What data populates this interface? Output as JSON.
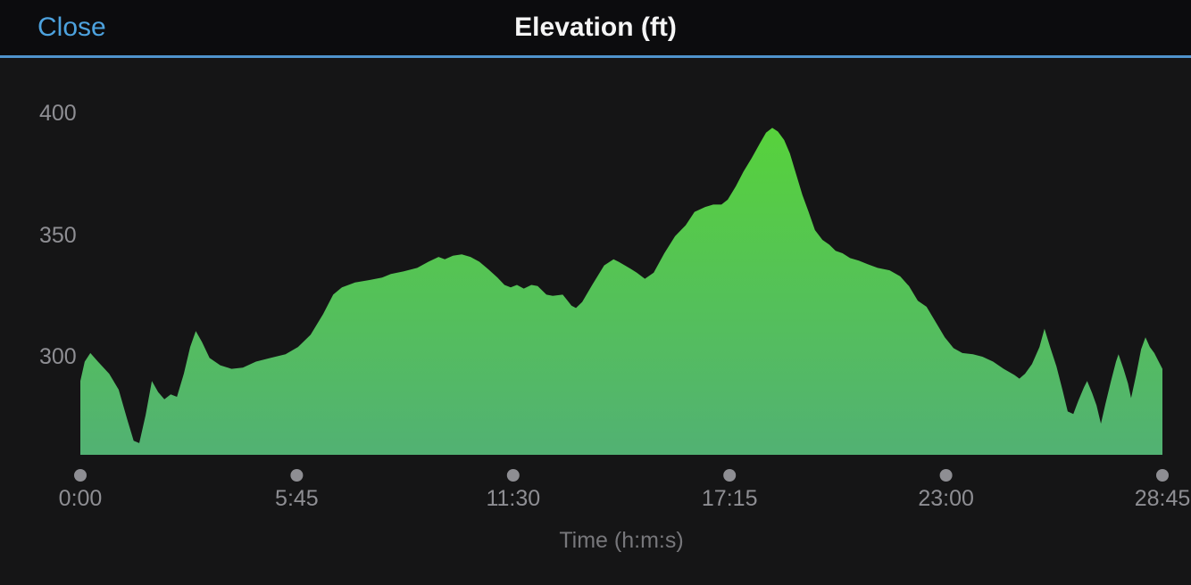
{
  "header": {
    "close_label": "Close",
    "title": "Elevation (ft)"
  },
  "colors": {
    "page_background": "#151516",
    "header_background": "#0c0c0e",
    "header_border_blue": "#4f93cc",
    "close_text_blue": "#4da2de",
    "title_text": "#f5f5f5",
    "tick_text": "#8e8e93",
    "axis_title_text": "#77777b",
    "tick_dot": "#8e8e93",
    "area_gradient_top": "#57d23c",
    "area_gradient_bottom": "#52b173"
  },
  "chart_data": {
    "type": "area",
    "title": "Elevation (ft)",
    "xlabel": "Time (h:m:s)",
    "ylabel": "",
    "x_unit": "seconds",
    "xlim": [
      0,
      1725
    ],
    "ylim": [
      259.5,
      419
    ],
    "grid": false,
    "legend": false,
    "y_ticks": [
      {
        "value": 400,
        "label": "400"
      },
      {
        "value": 350,
        "label": "350"
      },
      {
        "value": 300,
        "label": "300"
      }
    ],
    "x_ticks": [
      {
        "t": 0,
        "label": "0:00"
      },
      {
        "t": 345,
        "label": "5:45"
      },
      {
        "t": 690,
        "label": "11:30"
      },
      {
        "t": 1035,
        "label": "17:15"
      },
      {
        "t": 1380,
        "label": "23:00"
      },
      {
        "t": 1725,
        "label": "28:45"
      }
    ],
    "series": [
      {
        "name": "Elevation (ft)",
        "points": [
          [
            0,
            290
          ],
          [
            7,
            298
          ],
          [
            16,
            301.5
          ],
          [
            28,
            298
          ],
          [
            46,
            293
          ],
          [
            61,
            286.5
          ],
          [
            75,
            274
          ],
          [
            85,
            265.5
          ],
          [
            94,
            264.5
          ],
          [
            104,
            276
          ],
          [
            114,
            290
          ],
          [
            124,
            285.5
          ],
          [
            134,
            282.5
          ],
          [
            144,
            284.5
          ],
          [
            154,
            283.5
          ],
          [
            165,
            293
          ],
          [
            175,
            304
          ],
          [
            184,
            310.5
          ],
          [
            194,
            306
          ],
          [
            206,
            299.5
          ],
          [
            223,
            296.5
          ],
          [
            241,
            295
          ],
          [
            259,
            295.5
          ],
          [
            280,
            298
          ],
          [
            303,
            299.5
          ],
          [
            327,
            301
          ],
          [
            347,
            304
          ],
          [
            367,
            309
          ],
          [
            387,
            317.5
          ],
          [
            403,
            325.5
          ],
          [
            417,
            328.5
          ],
          [
            438,
            330.5
          ],
          [
            461,
            331.5
          ],
          [
            481,
            332.5
          ],
          [
            495,
            334
          ],
          [
            515,
            335
          ],
          [
            537,
            336.5
          ],
          [
            555,
            339
          ],
          [
            571,
            341
          ],
          [
            581,
            340
          ],
          [
            594,
            341.5
          ],
          [
            608,
            342
          ],
          [
            622,
            341
          ],
          [
            636,
            339
          ],
          [
            650,
            336
          ],
          [
            665,
            332.5
          ],
          [
            676,
            329.5
          ],
          [
            686,
            328.5
          ],
          [
            696,
            329.5
          ],
          [
            707,
            328
          ],
          [
            719,
            329.5
          ],
          [
            729,
            329
          ],
          [
            743,
            325.5
          ],
          [
            753,
            325
          ],
          [
            769,
            325.5
          ],
          [
            783,
            321
          ],
          [
            790,
            320
          ],
          [
            800,
            322.5
          ],
          [
            816,
            329.5
          ],
          [
            835,
            337.5
          ],
          [
            850,
            340
          ],
          [
            858,
            339
          ],
          [
            868,
            337.5
          ],
          [
            878,
            336
          ],
          [
            887,
            334.5
          ],
          [
            900,
            332
          ],
          [
            914,
            334.5
          ],
          [
            931,
            342.5
          ],
          [
            948,
            349.5
          ],
          [
            965,
            354
          ],
          [
            979,
            359.5
          ],
          [
            996,
            361.5
          ],
          [
            1009,
            362.5
          ],
          [
            1022,
            362.5
          ],
          [
            1032,
            364.5
          ],
          [
            1045,
            370
          ],
          [
            1057,
            376
          ],
          [
            1070,
            381.5
          ],
          [
            1083,
            387.5
          ],
          [
            1093,
            392
          ],
          [
            1103,
            394
          ],
          [
            1112,
            392.5
          ],
          [
            1122,
            389
          ],
          [
            1131,
            383.5
          ],
          [
            1141,
            375
          ],
          [
            1151,
            366.5
          ],
          [
            1161,
            359.5
          ],
          [
            1171,
            352
          ],
          [
            1183,
            348
          ],
          [
            1194,
            346
          ],
          [
            1204,
            343.5
          ],
          [
            1215,
            342.5
          ],
          [
            1227,
            340.5
          ],
          [
            1241,
            339.5
          ],
          [
            1255,
            338
          ],
          [
            1271,
            336.5
          ],
          [
            1290,
            335.5
          ],
          [
            1307,
            333
          ],
          [
            1321,
            329
          ],
          [
            1335,
            323
          ],
          [
            1349,
            320.5
          ],
          [
            1364,
            314
          ],
          [
            1378,
            308
          ],
          [
            1392,
            303.5
          ],
          [
            1406,
            301.5
          ],
          [
            1423,
            301
          ],
          [
            1438,
            300
          ],
          [
            1455,
            298
          ],
          [
            1472,
            295
          ],
          [
            1489,
            292.5
          ],
          [
            1497,
            291
          ],
          [
            1506,
            293
          ],
          [
            1517,
            297
          ],
          [
            1529,
            304
          ],
          [
            1537,
            311.5
          ],
          [
            1546,
            304
          ],
          [
            1556,
            296
          ],
          [
            1566,
            286
          ],
          [
            1574,
            277.5
          ],
          [
            1583,
            276.5
          ],
          [
            1591,
            282
          ],
          [
            1600,
            287.5
          ],
          [
            1605,
            290
          ],
          [
            1613,
            285
          ],
          [
            1620,
            280
          ],
          [
            1627,
            272.5
          ],
          [
            1634,
            280.5
          ],
          [
            1643,
            290
          ],
          [
            1651,
            298
          ],
          [
            1655,
            301
          ],
          [
            1663,
            295
          ],
          [
            1670,
            289
          ],
          [
            1675,
            283
          ],
          [
            1683,
            292.5
          ],
          [
            1691,
            303
          ],
          [
            1698,
            308
          ],
          [
            1705,
            304
          ],
          [
            1712,
            301.5
          ],
          [
            1719,
            298
          ],
          [
            1725,
            295
          ]
        ]
      }
    ]
  }
}
